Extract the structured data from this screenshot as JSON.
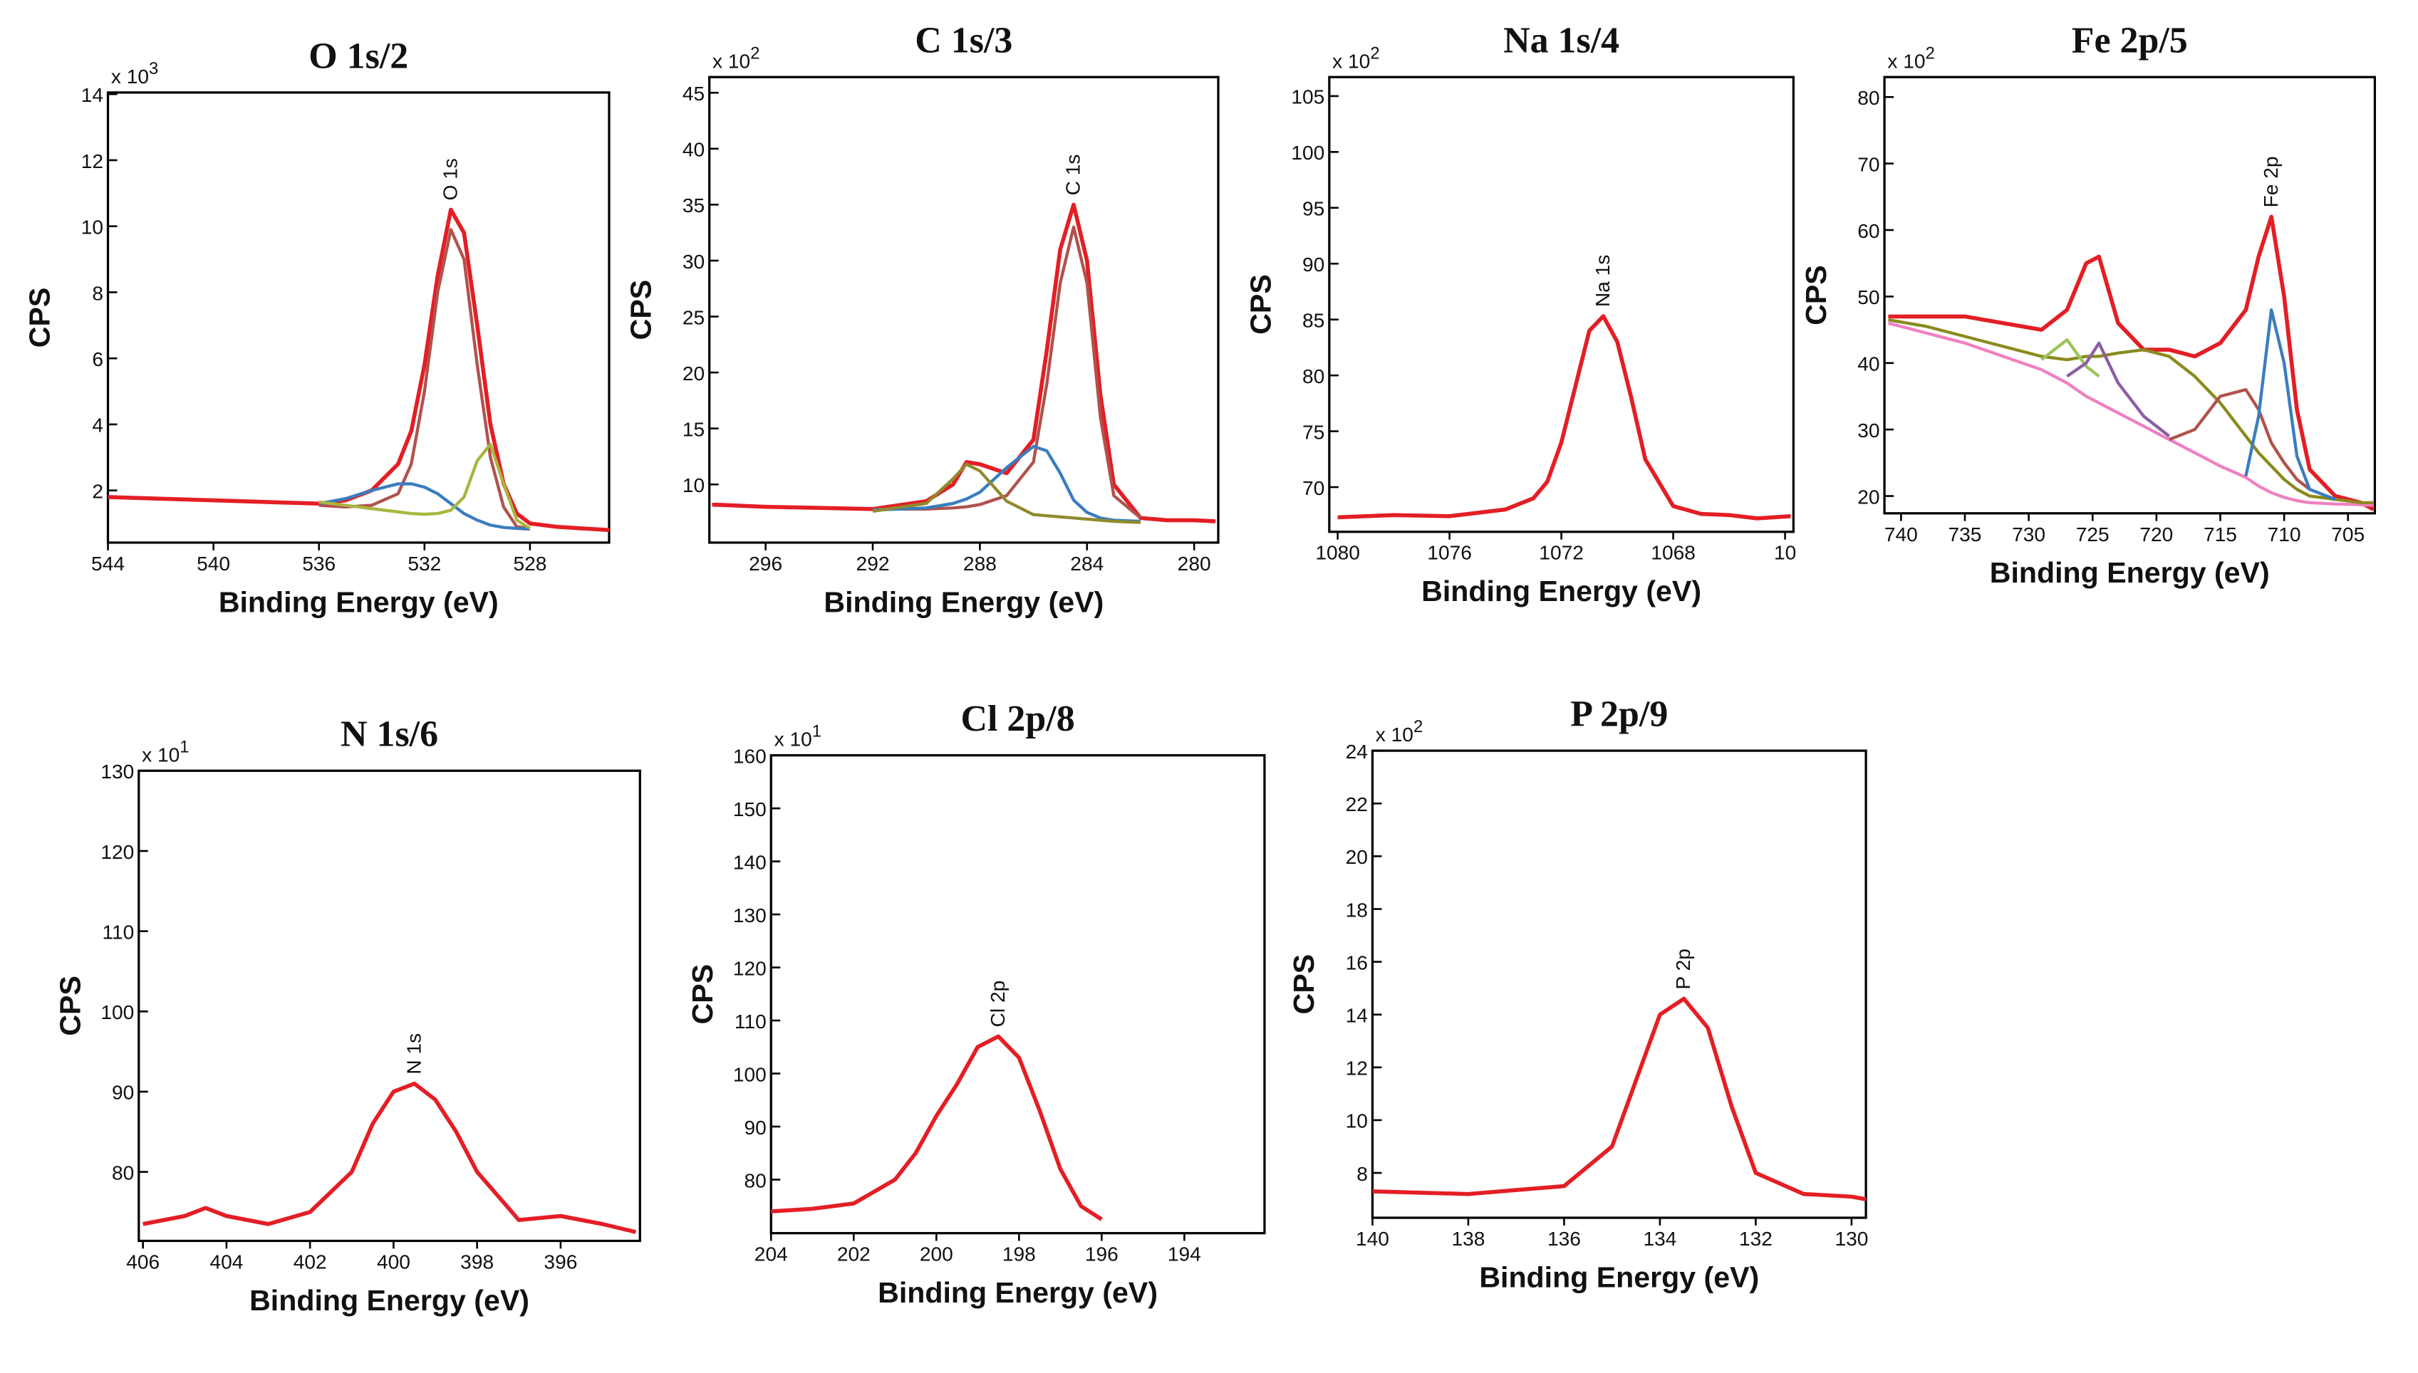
{
  "chart_data": [
    {
      "type": "line",
      "title": "O 1s/2",
      "xlabel": "Binding Energy (eV)",
      "ylabel": "CPS",
      "y_multiplier": {
        "base": "x 10",
        "exponent": "3"
      },
      "annotation": "O 1s",
      "xlim": [
        544,
        525
      ],
      "xticks": [
        544,
        540,
        536,
        532,
        528
      ],
      "ylim": [
        0.42,
        14.05
      ],
      "yticks": [
        2,
        4,
        6,
        8,
        10,
        12,
        14
      ],
      "x": [
        544,
        542,
        540,
        538,
        536,
        535,
        534,
        533,
        532.5,
        532,
        531.5,
        531,
        530.5,
        530,
        529.5,
        529,
        528.5,
        528,
        527,
        526,
        525
      ],
      "series": [
        {
          "color": "#e41e25",
          "values": [
            1.8,
            1.75,
            1.7,
            1.65,
            1.6,
            1.7,
            2.0,
            2.8,
            3.8,
            5.8,
            8.5,
            10.5,
            9.8,
            7.0,
            4.0,
            2.2,
            1.3,
            1.0,
            0.9,
            0.85,
            0.8
          ]
        },
        {
          "color": "#b0524c",
          "values": [
            null,
            null,
            null,
            null,
            1.55,
            1.5,
            1.55,
            1.9,
            2.8,
            5.0,
            8.0,
            9.9,
            9.0,
            5.8,
            3.0,
            1.5,
            0.9,
            0.85,
            null,
            null,
            null
          ]
        },
        {
          "color": "#3a7dbf",
          "values": [
            null,
            null,
            null,
            null,
            1.6,
            1.75,
            2.0,
            2.2,
            2.2,
            2.1,
            1.9,
            1.6,
            1.3,
            1.1,
            0.95,
            0.88,
            0.85,
            0.83,
            null,
            null,
            null
          ]
        },
        {
          "color": "#a8b640",
          "values": [
            null,
            null,
            null,
            null,
            1.65,
            1.55,
            1.45,
            1.35,
            1.3,
            1.28,
            1.3,
            1.4,
            1.8,
            2.9,
            3.4,
            2.2,
            1.1,
            0.85,
            null,
            null,
            null
          ]
        }
      ]
    },
    {
      "type": "line",
      "title": "C 1s/3",
      "xlabel": "Binding Energy (eV)",
      "ylabel": "CPS",
      "y_multiplier": {
        "base": "x 10",
        "exponent": "2"
      },
      "annotation": "C 1s",
      "xlim": [
        298.1,
        279.1
      ],
      "xticks": [
        296,
        292,
        288,
        284,
        280
      ],
      "ylim": [
        4.8,
        46.4
      ],
      "yticks": [
        10,
        15,
        20,
        25,
        30,
        35,
        40,
        45
      ],
      "x": [
        298,
        296,
        294,
        292,
        290,
        289,
        288.5,
        288,
        287,
        286,
        285.5,
        285,
        284.5,
        284,
        283.5,
        283,
        282,
        281,
        280,
        279.2
      ],
      "series": [
        {
          "color": "#e41e25",
          "values": [
            8.2,
            8.0,
            7.9,
            7.8,
            8.5,
            10,
            12,
            11.8,
            11,
            14,
            22,
            31,
            35,
            30,
            18,
            10,
            7,
            6.8,
            6.8,
            6.7
          ]
        },
        {
          "color": "#b0524c",
          "values": [
            null,
            null,
            null,
            7.8,
            7.8,
            7.9,
            8,
            8.2,
            9,
            12,
            19,
            28,
            33,
            28,
            16,
            9,
            7,
            null,
            null,
            null
          ]
        },
        {
          "color": "#3a7dbf",
          "values": [
            null,
            null,
            null,
            7.7,
            7.9,
            8.3,
            8.7,
            9.3,
            11.5,
            13.4,
            13,
            11,
            8.6,
            7.5,
            7.0,
            6.8,
            6.7,
            null,
            null,
            null
          ]
        },
        {
          "color": "#8f8a2d",
          "values": [
            null,
            null,
            null,
            7.6,
            8.3,
            10.5,
            11.8,
            11.2,
            8.5,
            7.3,
            7.2,
            7.1,
            7.0,
            6.9,
            6.8,
            6.7,
            6.6,
            null,
            null,
            null
          ]
        }
      ]
    },
    {
      "type": "line",
      "title": "Na 1s/4",
      "xlabel": "Binding Energy (eV)",
      "ylabel": "CPS",
      "y_multiplier": {
        "base": "x 10",
        "exponent": "2"
      },
      "annotation": "Na 1s",
      "xlim": [
        1080.3,
        1063.7
      ],
      "xticks": [
        1080,
        1076,
        1072,
        1068,
        {
          "value": 1064,
          "label": "10"
        }
      ],
      "ylim": [
        66,
        106.7
      ],
      "yticks": [
        70,
        75,
        80,
        85,
        90,
        95,
        100,
        105
      ],
      "x": [
        1080,
        1078,
        1076,
        1074,
        1073,
        1072.5,
        1072,
        1071.5,
        1071,
        1070.5,
        1070,
        1069.5,
        1069,
        1068,
        1067,
        1066,
        1065,
        1063.8
      ],
      "series": [
        {
          "color": "#e41e25",
          "values": [
            67.3,
            67.5,
            67.4,
            68,
            69,
            70.5,
            74,
            79,
            84,
            85.3,
            83,
            78,
            72.5,
            68.3,
            67.6,
            67.5,
            67.2,
            67.4
          ]
        }
      ]
    },
    {
      "type": "line",
      "title": "Fe 2p/5",
      "xlabel": "Binding Energy (eV)",
      "ylabel": "CPS",
      "y_multiplier": {
        "base": "x 10",
        "exponent": "2"
      },
      "annotation": "Fe 2p",
      "xlim": [
        741.3,
        702.9
      ],
      "xticks": [
        740,
        735,
        730,
        725,
        720,
        715,
        710,
        705
      ],
      "ylim": [
        17.4,
        83
      ],
      "yticks": [
        20,
        30,
        40,
        50,
        60,
        70,
        80
      ],
      "x": [
        741,
        738,
        735,
        732,
        729,
        727,
        725.5,
        724.5,
        723,
        721,
        719,
        717,
        715,
        713,
        712,
        711,
        710,
        709,
        708,
        706,
        704,
        703
      ],
      "series": [
        {
          "color": "#e41e25",
          "values": [
            47,
            47,
            47,
            46,
            45,
            48,
            55,
            56,
            46,
            42,
            42,
            41,
            43,
            48,
            56,
            62,
            50,
            33,
            24,
            20,
            19,
            18
          ]
        },
        {
          "color": "#f080c0",
          "values": [
            46,
            44.5,
            43,
            41,
            39,
            37,
            35,
            34,
            32.5,
            30.5,
            28.5,
            26.5,
            24.5,
            22.8,
            21.5,
            20.5,
            19.8,
            19.3,
            19,
            18.8,
            18.7,
            18.6
          ]
        },
        {
          "color": "#8a8a1e",
          "values": [
            46.5,
            45.5,
            44,
            42.5,
            41,
            40.5,
            41,
            41,
            41.5,
            42,
            41,
            38,
            34,
            29,
            26.5,
            24.5,
            22.5,
            21,
            20,
            19.5,
            19,
            19
          ]
        },
        {
          "color": "#9cc45a",
          "values": [
            null,
            null,
            null,
            null,
            40.5,
            43.5,
            39.5,
            38,
            null,
            null,
            null,
            null,
            null,
            null,
            null,
            null,
            null,
            null,
            null,
            null,
            null,
            null
          ]
        },
        {
          "color": "#8a5fa3",
          "values": [
            null,
            null,
            null,
            null,
            null,
            38,
            40,
            43,
            37,
            32,
            29,
            null,
            null,
            null,
            null,
            null,
            null,
            null,
            null,
            null,
            null,
            null
          ]
        },
        {
          "color": "#b0524c",
          "values": [
            null,
            null,
            null,
            null,
            null,
            null,
            null,
            null,
            null,
            null,
            28.5,
            30,
            35,
            36,
            33,
            28,
            25,
            22.5,
            21,
            null,
            null,
            null
          ]
        },
        {
          "color": "#3a7dbf",
          "values": [
            null,
            null,
            null,
            null,
            null,
            null,
            null,
            null,
            null,
            null,
            null,
            null,
            null,
            23,
            32,
            48,
            40,
            26,
            21,
            19.5,
            null,
            null
          ]
        }
      ]
    },
    {
      "type": "line",
      "title": "N 1s/6",
      "xlabel": "Binding Energy (eV)",
      "ylabel": "CPS",
      "y_multiplier": {
        "base": "x 10",
        "exponent": "1"
      },
      "annotation": "N 1s",
      "xlim": [
        406.1,
        394.1
      ],
      "xticks": [
        406,
        404,
        402,
        400,
        398,
        396
      ],
      "ylim": [
        71.4,
        130
      ],
      "yticks": [
        80,
        90,
        100,
        110,
        120,
        130
      ],
      "x": [
        406,
        405,
        404.5,
        404,
        403,
        402,
        401,
        400.5,
        400,
        399.5,
        399,
        398.5,
        398,
        397,
        396,
        395,
        394.2
      ],
      "series": [
        {
          "color": "#e41e25",
          "values": [
            73.5,
            74.5,
            75.5,
            74.5,
            73.5,
            75,
            80,
            86,
            90,
            91,
            89,
            85,
            80,
            74,
            74.5,
            73.5,
            72.5
          ]
        }
      ]
    },
    {
      "type": "line",
      "title": "Cl 2p/8",
      "xlabel": "Binding Energy (eV)",
      "ylabel": "CPS",
      "y_multiplier": {
        "base": "x 10",
        "exponent": "1"
      },
      "annotation": "Cl 2p",
      "xlim": [
        204,
        192.06
      ],
      "xticks": [
        204,
        202,
        200,
        198,
        196,
        194
      ],
      "ylim": [
        69.9,
        160
      ],
      "yticks": [
        80,
        90,
        100,
        110,
        120,
        130,
        140,
        150,
        160
      ],
      "x": [
        204,
        203,
        202,
        201,
        200.5,
        200,
        199.5,
        199,
        198.5,
        198,
        197.5,
        197,
        196.5,
        196
      ],
      "series": [
        {
          "color": "#e41e25",
          "values": [
            74,
            74.5,
            75.5,
            80,
            85,
            92,
            98,
            105,
            107,
            103,
            93,
            82,
            75,
            72.5
          ]
        }
      ]
    },
    {
      "type": "line",
      "title": "P 2p/9",
      "xlabel": "Binding Energy (eV)",
      "ylabel": "CPS",
      "y_multiplier": {
        "base": "x 10",
        "exponent": "2"
      },
      "annotation": "P 2p",
      "xlim": [
        140,
        129.7
      ],
      "xticks": [
        140,
        138,
        136,
        134,
        132,
        130
      ],
      "ylim": [
        6.3,
        24
      ],
      "yticks": [
        8,
        10,
        12,
        14,
        16,
        18,
        20,
        22,
        24
      ],
      "x": [
        140,
        138,
        136,
        135,
        134.5,
        134,
        133.5,
        133,
        132.5,
        132,
        131,
        130,
        129.7
      ],
      "series": [
        {
          "color": "#e41e25",
          "values": [
            7.3,
            7.2,
            7.5,
            9,
            11.5,
            14,
            14.6,
            13.5,
            10.5,
            8,
            7.2,
            7.1,
            7.0
          ]
        }
      ]
    }
  ]
}
